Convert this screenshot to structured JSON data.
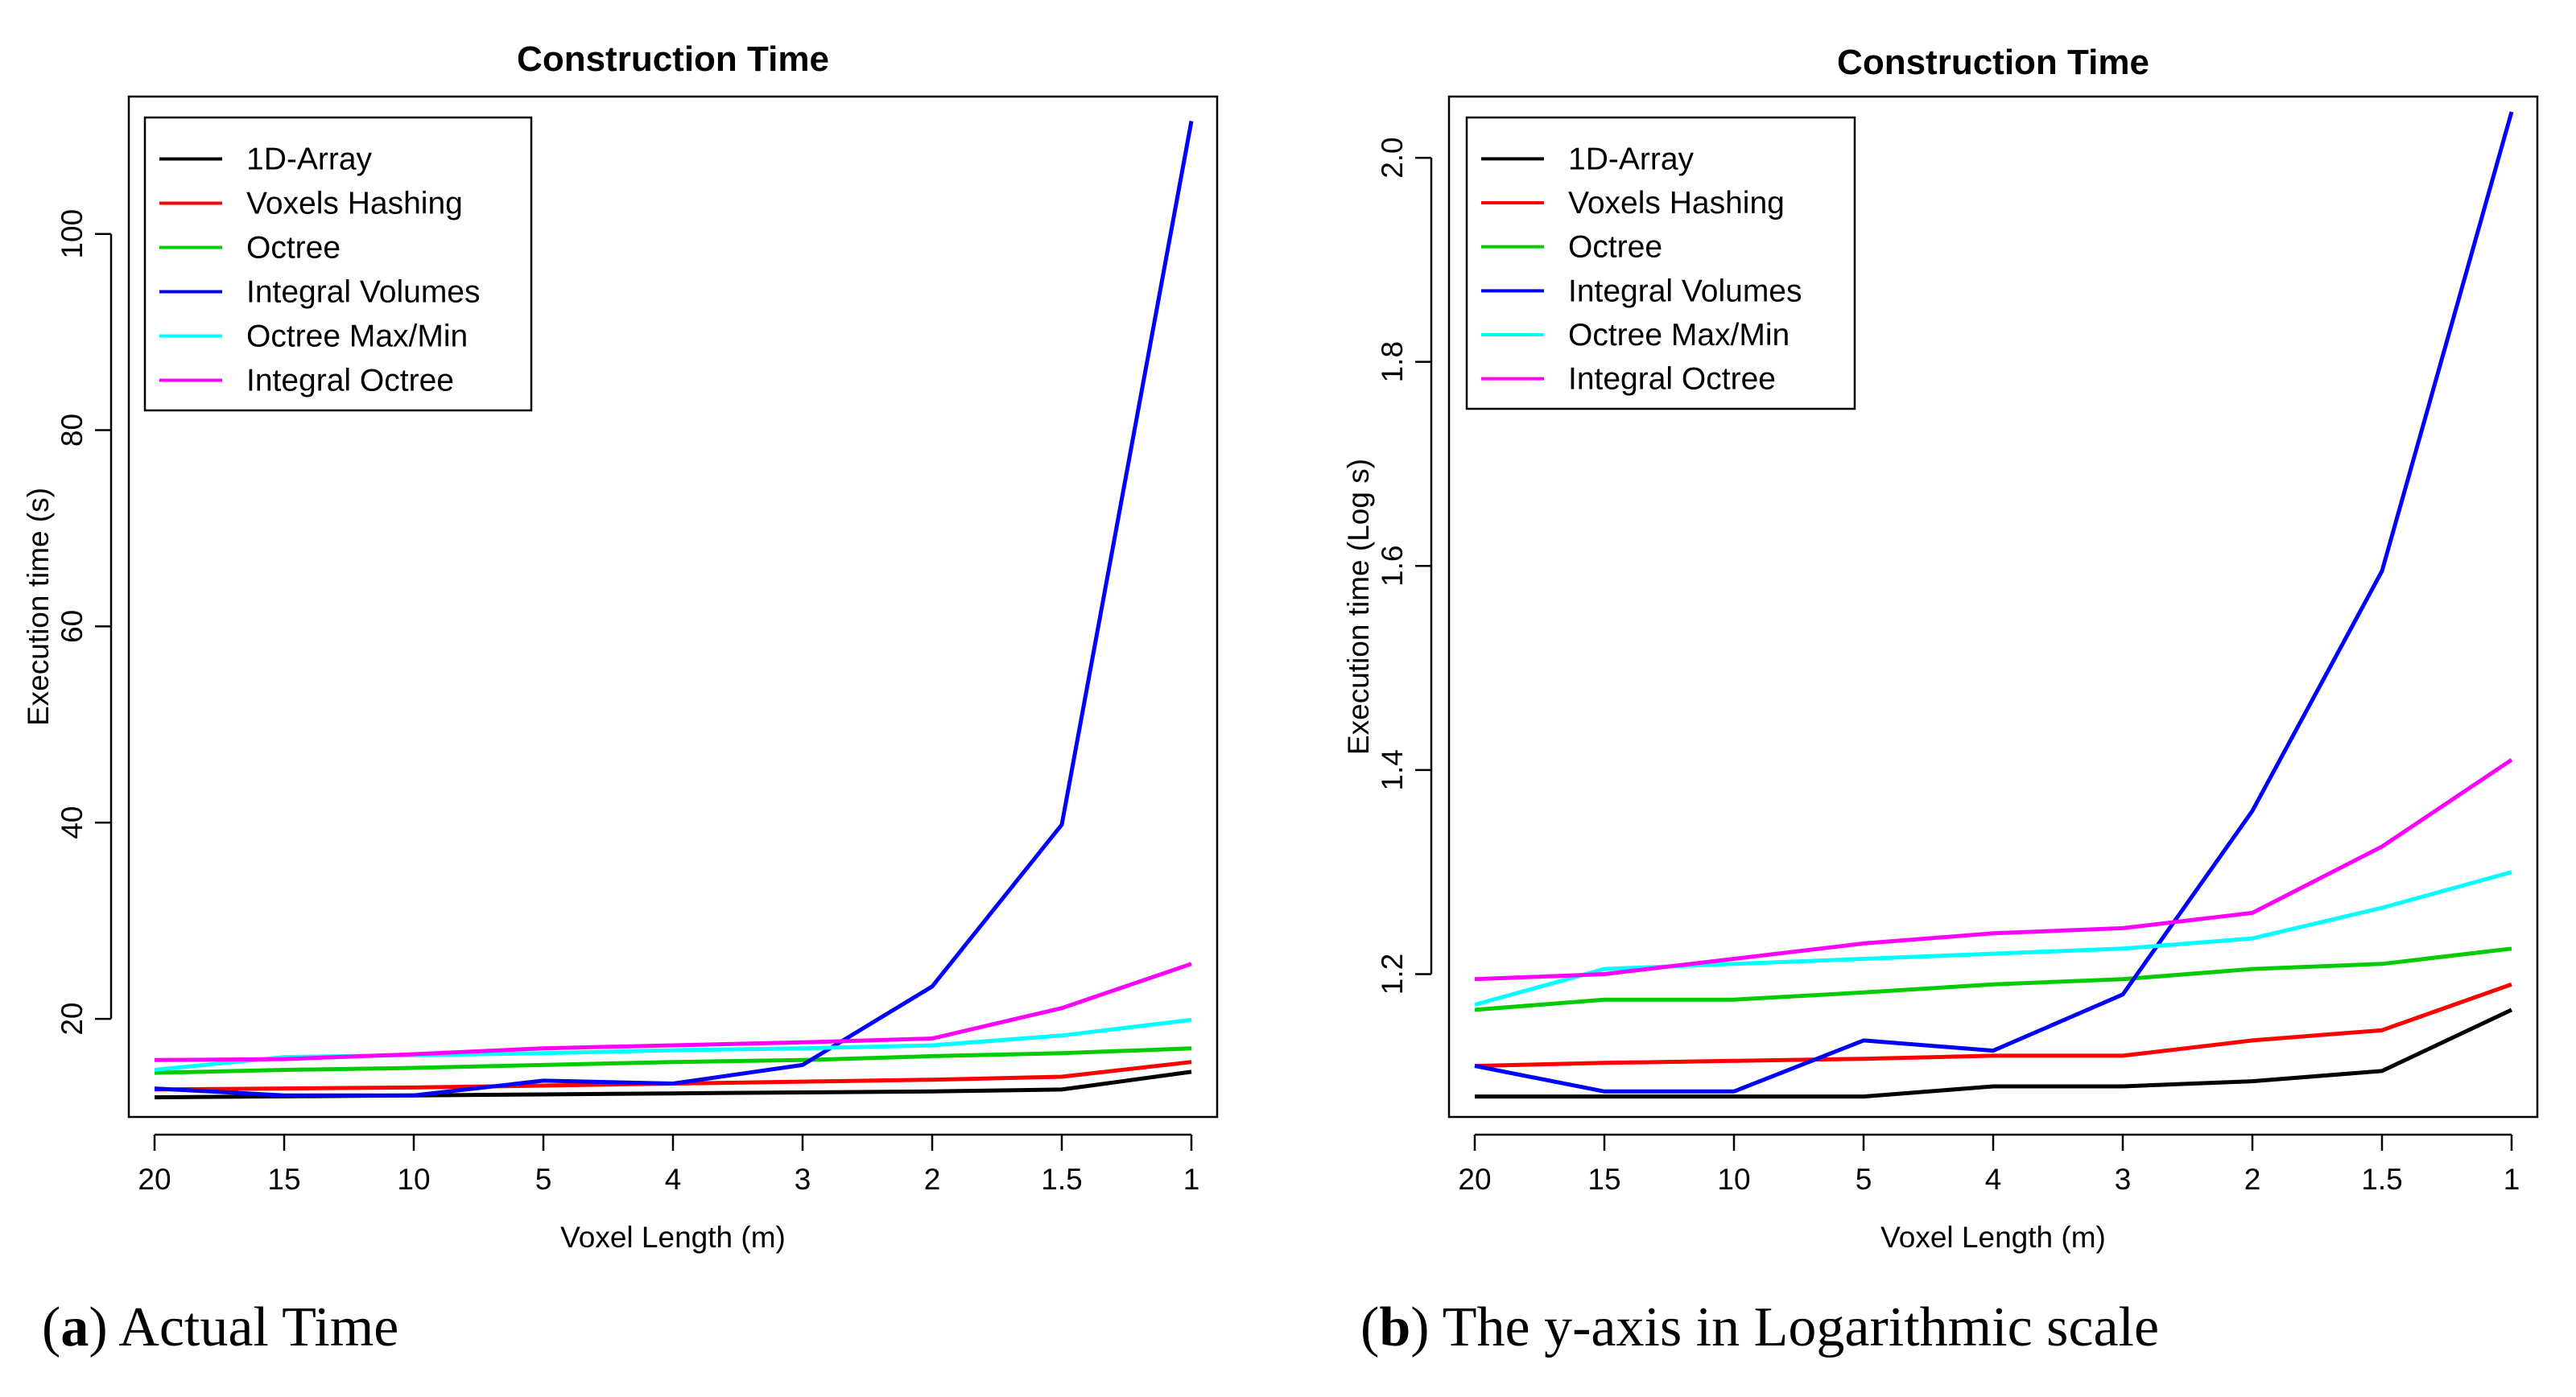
{
  "chart_data": [
    {
      "type": "line",
      "title": "Construction Time",
      "xlabel": "Voxel Length (m)",
      "ylabel": "Execution time (s)",
      "categories": [
        "20",
        "15",
        "10",
        "5",
        "4",
        "3",
        "2",
        "1.5",
        "1"
      ],
      "ylim": [
        10,
        114
      ],
      "yticks": [
        20,
        40,
        60,
        80,
        100
      ],
      "grid": false,
      "legend_position": "top-left",
      "series": [
        {
          "name": "1D-Array",
          "color": "#000000",
          "values": [
            12.0,
            12.1,
            12.2,
            12.3,
            12.4,
            12.5,
            12.6,
            12.8,
            14.6
          ]
        },
        {
          "name": "Voxels Hashing",
          "color": "#ff0000",
          "values": [
            12.8,
            12.9,
            13.0,
            13.2,
            13.4,
            13.6,
            13.8,
            14.1,
            15.6
          ]
        },
        {
          "name": "Octree",
          "color": "#00cc00",
          "values": [
            14.5,
            14.8,
            15.0,
            15.3,
            15.6,
            15.8,
            16.2,
            16.5,
            17.0
          ]
        },
        {
          "name": "Integral Volumes",
          "color": "#0000ff",
          "values": [
            12.9,
            12.2,
            12.2,
            13.7,
            13.4,
            15.3,
            23.3,
            39.8,
            111.5
          ]
        },
        {
          "name": "Octree Max/Min",
          "color": "#00ffff",
          "values": [
            14.8,
            16.1,
            16.3,
            16.5,
            16.8,
            17.0,
            17.3,
            18.3,
            19.9
          ]
        },
        {
          "name": "Integral Octree",
          "color": "#ff00ff",
          "values": [
            15.8,
            15.9,
            16.4,
            17.0,
            17.3,
            17.6,
            18.0,
            21.1,
            25.6
          ]
        }
      ]
    },
    {
      "type": "line",
      "title": "Construction Time",
      "xlabel": "Voxel Length (m)",
      "ylabel": "Execution time (Log s)",
      "categories": [
        "20",
        "15",
        "10",
        "5",
        "4",
        "3",
        "2",
        "1.5",
        "1"
      ],
      "ylim": [
        1.06,
        2.06
      ],
      "yticks": [
        "1.2",
        "1.4",
        "1.6",
        "1.8",
        "2.0"
      ],
      "grid": false,
      "legend_position": "top-left",
      "series": [
        {
          "name": "1D-Array",
          "color": "#000000",
          "values": [
            1.08,
            1.08,
            1.08,
            1.08,
            1.09,
            1.09,
            1.095,
            1.105,
            1.165
          ]
        },
        {
          "name": "Voxels Hashing",
          "color": "#ff0000",
          "values": [
            1.11,
            1.113,
            1.115,
            1.117,
            1.12,
            1.12,
            1.135,
            1.145,
            1.19
          ]
        },
        {
          "name": "Octree",
          "color": "#00cc00",
          "values": [
            1.165,
            1.175,
            1.175,
            1.182,
            1.19,
            1.195,
            1.205,
            1.21,
            1.225
          ]
        },
        {
          "name": "Integral Volumes",
          "color": "#0000ff",
          "values": [
            1.11,
            1.085,
            1.085,
            1.135,
            1.125,
            1.18,
            1.36,
            1.595,
            2.045
          ]
        },
        {
          "name": "Octree Max/Min",
          "color": "#00ffff",
          "values": [
            1.17,
            1.205,
            1.21,
            1.215,
            1.22,
            1.225,
            1.235,
            1.265,
            1.3
          ]
        },
        {
          "name": "Integral Octree",
          "color": "#ff00ff",
          "values": [
            1.195,
            1.2,
            1.215,
            1.23,
            1.24,
            1.245,
            1.26,
            1.325,
            1.41
          ]
        }
      ]
    }
  ],
  "captions": [
    {
      "letter": "a",
      "text": "Actual Time"
    },
    {
      "letter": "b",
      "text": "The y-axis in Logarithmic scale"
    }
  ]
}
